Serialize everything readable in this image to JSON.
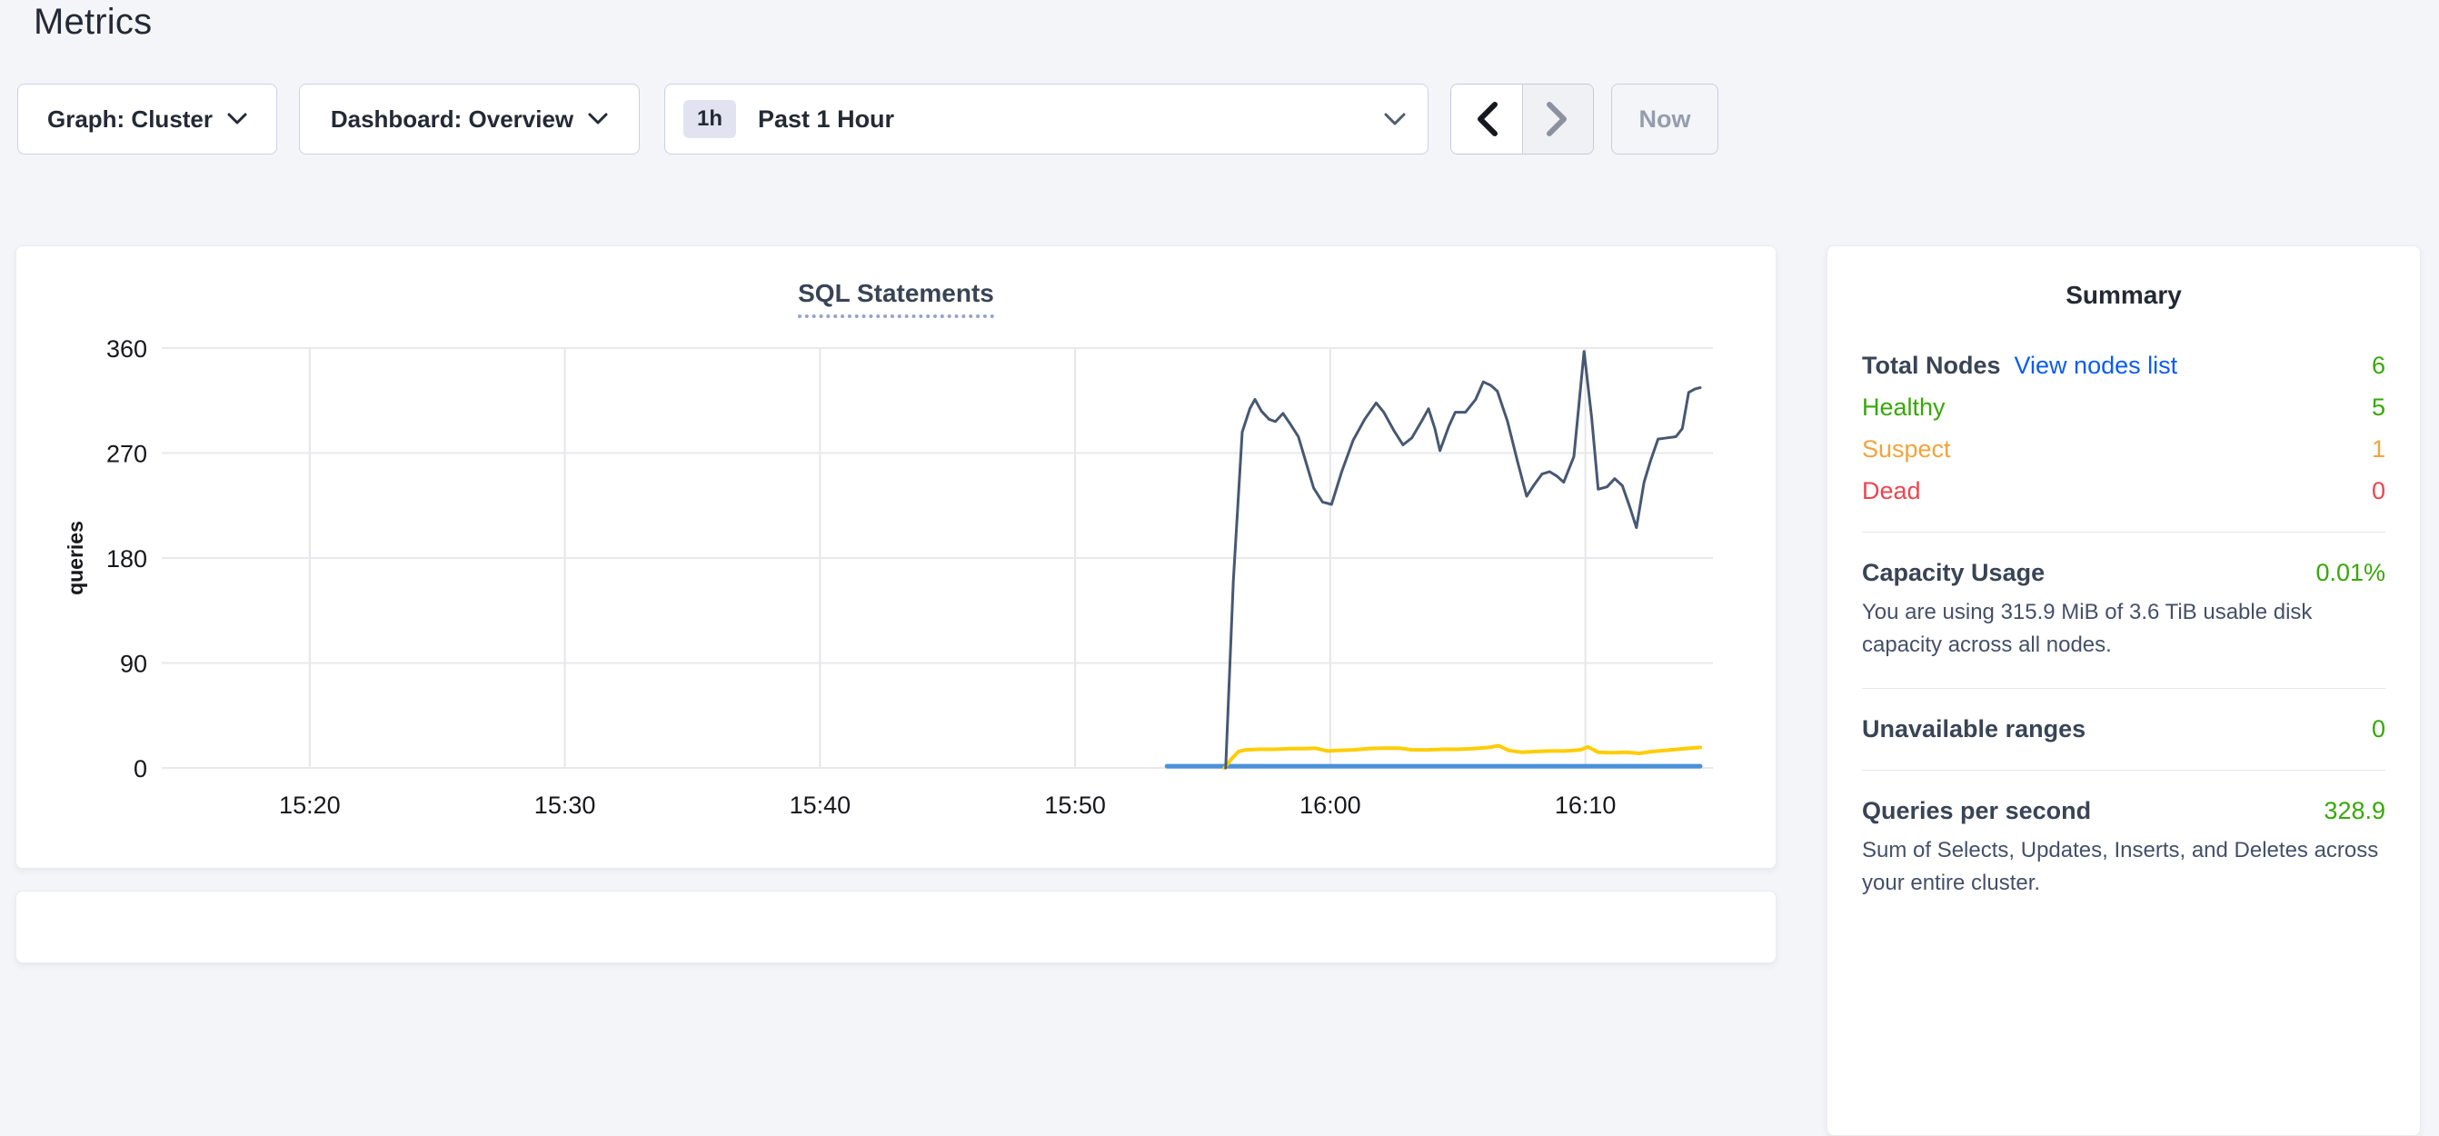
{
  "header": {
    "title": "Metrics"
  },
  "controls": {
    "graph_label": "Graph: Cluster",
    "dashboard_label": "Dashboard: Overview",
    "time_badge": "1h",
    "time_label": "Past 1 Hour",
    "now_label": "Now",
    "prev_icon": "chevron-left",
    "next_icon": "chevron-right (disabled)"
  },
  "chart_data": {
    "type": "line",
    "title": "SQL Statements",
    "xlabel": "",
    "ylabel": "queries",
    "ylim": [
      0,
      360
    ],
    "yticks": [
      0,
      90,
      180,
      270,
      360
    ],
    "x_domain_minutes": [
      14.2,
      75.0
    ],
    "xticks": [
      {
        "t": 20,
        "label": "15:20"
      },
      {
        "t": 30,
        "label": "15:30"
      },
      {
        "t": 40,
        "label": "15:40"
      },
      {
        "t": 50,
        "label": "15:50"
      },
      {
        "t": 60,
        "label": "16:00"
      },
      {
        "t": 70,
        "label": "16:10"
      }
    ],
    "grid": true,
    "legend": "none",
    "series": [
      {
        "color": "#4a90d9",
        "width": 5,
        "points": [
          [
            53.6,
            1.5
          ],
          [
            74.5,
            1.5
          ]
        ]
      },
      {
        "color": "#ffcd05",
        "width": 4,
        "points": [
          [
            55.85,
            0
          ],
          [
            56.1,
            7
          ],
          [
            56.4,
            14
          ],
          [
            56.7,
            15.5
          ],
          [
            57.2,
            16
          ],
          [
            57.8,
            16
          ],
          [
            58.4,
            16.5
          ],
          [
            59.0,
            16.5
          ],
          [
            59.4,
            17
          ],
          [
            59.9,
            14.5
          ],
          [
            60.3,
            15
          ],
          [
            60.9,
            15.5
          ],
          [
            61.5,
            16.5
          ],
          [
            62.1,
            17
          ],
          [
            62.7,
            17
          ],
          [
            63.2,
            15.5
          ],
          [
            63.8,
            15.5
          ],
          [
            64.4,
            16
          ],
          [
            65.0,
            16
          ],
          [
            65.6,
            16.5
          ],
          [
            66.2,
            17.5
          ],
          [
            66.6,
            19
          ],
          [
            67.0,
            15
          ],
          [
            67.5,
            13.5
          ],
          [
            68.0,
            14
          ],
          [
            68.6,
            14.5
          ],
          [
            69.2,
            14.5
          ],
          [
            69.8,
            15.5
          ],
          [
            70.1,
            18
          ],
          [
            70.5,
            13.5
          ],
          [
            71.0,
            13
          ],
          [
            71.6,
            13.5
          ],
          [
            72.1,
            12.5
          ],
          [
            72.6,
            14
          ],
          [
            73.1,
            15
          ],
          [
            73.6,
            16
          ],
          [
            74.1,
            17
          ],
          [
            74.5,
            17.5
          ]
        ]
      },
      {
        "color": "#475872",
        "width": 3,
        "points": [
          [
            55.9,
            0
          ],
          [
            56.2,
            160
          ],
          [
            56.55,
            288
          ],
          [
            56.85,
            308
          ],
          [
            57.05,
            316
          ],
          [
            57.3,
            306
          ],
          [
            57.6,
            299
          ],
          [
            57.85,
            297
          ],
          [
            58.15,
            304
          ],
          [
            58.4,
            296
          ],
          [
            58.75,
            284
          ],
          [
            59.05,
            262
          ],
          [
            59.35,
            240
          ],
          [
            59.7,
            228
          ],
          [
            60.05,
            226
          ],
          [
            60.45,
            254
          ],
          [
            60.9,
            281
          ],
          [
            61.35,
            299
          ],
          [
            61.8,
            313
          ],
          [
            62.1,
            305
          ],
          [
            62.5,
            289
          ],
          [
            62.85,
            277
          ],
          [
            63.2,
            283
          ],
          [
            63.6,
            298
          ],
          [
            63.85,
            308
          ],
          [
            64.1,
            291
          ],
          [
            64.3,
            272
          ],
          [
            64.65,
            293
          ],
          [
            64.9,
            305
          ],
          [
            65.3,
            305
          ],
          [
            65.7,
            316
          ],
          [
            66.0,
            331
          ],
          [
            66.3,
            328
          ],
          [
            66.55,
            323
          ],
          [
            66.95,
            297
          ],
          [
            67.35,
            262
          ],
          [
            67.7,
            233
          ],
          [
            68.0,
            243
          ],
          [
            68.3,
            252
          ],
          [
            68.6,
            254
          ],
          [
            68.9,
            250
          ],
          [
            69.15,
            245
          ],
          [
            69.55,
            267
          ],
          [
            69.95,
            357
          ],
          [
            70.25,
            300
          ],
          [
            70.5,
            239
          ],
          [
            70.85,
            241
          ],
          [
            71.15,
            248
          ],
          [
            71.45,
            242
          ],
          [
            71.75,
            223
          ],
          [
            72.0,
            206
          ],
          [
            72.3,
            245
          ],
          [
            72.55,
            263
          ],
          [
            72.85,
            282
          ],
          [
            73.2,
            283
          ],
          [
            73.55,
            284
          ],
          [
            73.8,
            291
          ],
          [
            74.05,
            322
          ],
          [
            74.3,
            325
          ],
          [
            74.5,
            326
          ]
        ]
      }
    ]
  },
  "summary": {
    "title": "Summary",
    "total_nodes_label": "Total Nodes",
    "view_nodes_link": "View nodes list",
    "total_nodes_value": "6",
    "node_rows": [
      {
        "label": "Healthy",
        "value": "5",
        "color": "#37a806"
      },
      {
        "label": "Suspect",
        "value": "1",
        "color": "#f2a43b"
      },
      {
        "label": "Dead",
        "value": "0",
        "color": "#ee444e"
      }
    ],
    "capacity_label": "Capacity Usage",
    "capacity_value": "0.01%",
    "capacity_desc": "You are using 315.9 MiB of 3.6 TiB usable disk capacity across all nodes.",
    "unavailable_label": "Unavailable ranges",
    "unavailable_value": "0",
    "qps_label": "Queries per second",
    "qps_value": "328.9",
    "qps_desc": "Sum of Selects, Updates, Inserts, and Deletes across your entire cluster."
  },
  "colors": {
    "link_blue": "#0b5cf2",
    "healthy_green": "#37a806",
    "suspect_orange": "#f2a43b",
    "dead_red": "#ee444e",
    "page_background": "#f4f5f9"
  }
}
